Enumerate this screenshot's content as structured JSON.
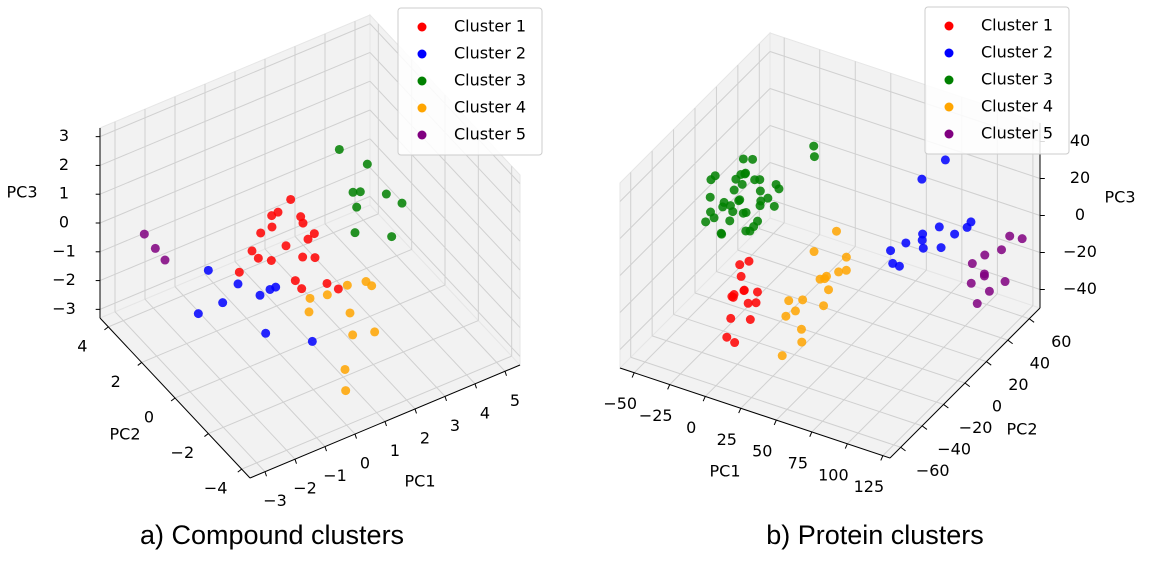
{
  "chart_data": [
    {
      "type": "scatter3d",
      "caption": "a) Compound clusters",
      "xlabel": "PC1",
      "ylabel": "PC2",
      "zlabel": "PC3",
      "xlim": [
        -3.5,
        5.5
      ],
      "ylim": [
        -4.5,
        4.5
      ],
      "zlim": [
        -3.3,
        3.3
      ],
      "xticks": [
        {
          "value": -3,
          "label": "−3"
        },
        {
          "value": -2,
          "label": "−2"
        },
        {
          "value": -1,
          "label": "−1"
        },
        0,
        1,
        2,
        3,
        4,
        5
      ],
      "yticks": [
        {
          "value": -4,
          "label": "−4"
        },
        {
          "value": -2,
          "label": "−2"
        },
        0,
        2,
        4
      ],
      "zticks": [
        {
          "value": -3,
          "label": "−3"
        },
        {
          "value": -2,
          "label": "−2"
        },
        {
          "value": -1,
          "label": "−1"
        },
        0,
        1,
        2,
        3
      ],
      "grid": true,
      "legend": "upper right",
      "series": [
        {
          "name": "Cluster 1",
          "color": "red",
          "x": [
            0.3,
            0.0,
            0.6,
            -0.2,
            0.8,
            0.4,
            1.0,
            -0.5,
            0.2,
            0.7,
            1.2,
            -0.1,
            0.5,
            0.9,
            1.5,
            0.1,
            0.6,
            1.1,
            -0.3,
            0.4
          ],
          "y": [
            -0.1,
            0.5,
            -0.6,
            0.8,
            0.2,
            1.2,
            -0.3,
            0.4,
            -1.0,
            0.9,
            0.1,
            1.5,
            -0.4,
            -1.2,
            -0.8,
            0.3,
            1.6,
            0.6,
            1.9,
            -0.2
          ],
          "z": [
            2.0,
            1.2,
            0.8,
            0.5,
            1.0,
            0.2,
            -0.2,
            0.0,
            0.6,
            -0.4,
            0.3,
            -0.6,
            -1.0,
            -0.5,
            -1.2,
            1.4,
            -1.3,
            0.4,
            -1.5,
            -0.8
          ]
        },
        {
          "name": "Cluster 2",
          "color": "blue",
          "x": [
            -1.0,
            -0.4,
            0.0,
            -0.8,
            0.3,
            -1.5,
            0.5,
            -0.2,
            0.8
          ],
          "y": [
            2.5,
            1.8,
            1.2,
            2.0,
            0.8,
            2.2,
            1.5,
            0.5,
            -0.5
          ],
          "z": [
            -1.5,
            -1.8,
            -2.0,
            -2.4,
            -1.6,
            -2.6,
            -2.2,
            -2.8,
            -2.9
          ]
        },
        {
          "name": "Cluster 3",
          "color": "green",
          "x": [
            2.2,
            2.8,
            3.1,
            2.4,
            2.6,
            3.4,
            2.0,
            3.0,
            3.5
          ],
          "y": [
            0.4,
            -0.2,
            -0.8,
            -0.5,
            0.3,
            -1.2,
            -0.9,
            0.8,
            -0.4
          ],
          "z": [
            2.6,
            2.2,
            1.4,
            1.6,
            1.0,
            1.2,
            0.6,
            0.0,
            -0.5
          ]
        },
        {
          "name": "Cluster 4",
          "color": "orange",
          "x": [
            1.3,
            1.8,
            1.0,
            2.2,
            1.5,
            0.8,
            2.5,
            1.2,
            0.5,
            0.3,
            1.6
          ],
          "y": [
            -0.5,
            -0.8,
            0.0,
            -1.2,
            -1.5,
            -0.3,
            -1.0,
            -2.2,
            -3.0,
            -3.4,
            -2.8
          ],
          "z": [
            -1.5,
            -1.2,
            -1.8,
            -1.0,
            -1.6,
            -2.0,
            -1.4,
            -1.8,
            -2.2,
            -2.6,
            -1.5
          ]
        },
        {
          "name": "Cluster 5",
          "color": "purple",
          "x": [
            -2.1,
            -2.3,
            -2.0
          ],
          "y": [
            3.7,
            4.0,
            3.3
          ],
          "z": [
            -1.0,
            -0.6,
            -1.2
          ]
        }
      ]
    },
    {
      "type": "scatter3d",
      "caption": "b) Protein clusters",
      "xlabel": "PC1",
      "ylabel": "PC2",
      "zlabel": "PC3",
      "xlim": [
        -60,
        130
      ],
      "ylim": [
        -70,
        70
      ],
      "zlim": [
        -50,
        50
      ],
      "xticks": [
        {
          "value": -50,
          "label": "−50"
        },
        {
          "value": -25,
          "label": "−25"
        },
        0,
        25,
        50,
        75,
        100,
        125
      ],
      "yticks": [
        {
          "value": -60,
          "label": "−60"
        },
        {
          "value": -40,
          "label": "−40"
        },
        {
          "value": -20,
          "label": "−20"
        },
        0,
        20,
        40,
        60
      ],
      "zticks": [
        {
          "value": -40,
          "label": "−40"
        },
        {
          "value": -20,
          "label": "−20"
        },
        0,
        20,
        40
      ],
      "grid": true,
      "legend": "upper right",
      "series": [
        {
          "name": "Cluster 1",
          "color": "red",
          "x": [
            -20,
            -14,
            -10,
            -18,
            -24,
            -8,
            -16,
            -12,
            -22,
            -6,
            -15,
            -19,
            -11,
            -25,
            -9
          ],
          "y": [
            -10,
            -15,
            -8,
            -20,
            -6,
            -12,
            -25,
            -18,
            -14,
            -22,
            -30,
            -4,
            -28,
            -12,
            -16
          ],
          "z": [
            -25,
            -28,
            -32,
            -30,
            -22,
            -35,
            -38,
            -26,
            -33,
            -29,
            -45,
            -20,
            -48,
            -36,
            -42
          ]
        },
        {
          "name": "Cluster 2",
          "color": "blue",
          "x": [
            55,
            62,
            70,
            78,
            85,
            65,
            72,
            90,
            68,
            80,
            58,
            75,
            95,
            83
          ],
          "y": [
            30,
            35,
            40,
            45,
            50,
            25,
            38,
            55,
            42,
            48,
            28,
            33,
            52,
            40
          ],
          "z": [
            -15,
            -12,
            -8,
            -5,
            -10,
            -18,
            -14,
            -8,
            20,
            30,
            -20,
            -6,
            -2,
            -12
          ]
        },
        {
          "name": "Cluster 3",
          "color": "green",
          "x": [
            -27,
            -35,
            -20,
            -40,
            -15,
            -30,
            -25,
            -45,
            -10,
            -32,
            -22,
            -38,
            -18,
            -28,
            -42,
            -12,
            -33,
            -24,
            -36,
            -16,
            -29,
            -21,
            -44,
            -26,
            -34,
            -19,
            -39,
            -31,
            -23,
            -14,
            -48,
            -27,
            -37,
            -11,
            -25,
            -30,
            -17,
            -41,
            13,
            15
          ],
          "y": [
            -2,
            5,
            -8,
            10,
            -12,
            3,
            15,
            -5,
            -15,
            8,
            -3,
            18,
            0,
            -10,
            2,
            12,
            -18,
            6,
            -7,
            20,
            -14,
            9,
            14,
            -1,
            -20,
            4,
            -9,
            22,
            -16,
            7,
            -6,
            11,
            16,
            -4,
            -22,
            1,
            17,
            -11,
            14,
            12
          ],
          "z": [
            10,
            15,
            8,
            5,
            12,
            20,
            0,
            18,
            5,
            25,
            -5,
            10,
            22,
            3,
            0,
            14,
            8,
            28,
            -8,
            6,
            15,
            2,
            -10,
            18,
            12,
            -3,
            24,
            6,
            16,
            9,
            -5,
            -12,
            11,
            20,
            4,
            7,
            -2,
            13,
            40,
            36
          ]
        },
        {
          "name": "Cluster 4",
          "color": "orange",
          "x": [
            20,
            28,
            35,
            25,
            40,
            15,
            32,
            22,
            45,
            30,
            18,
            38,
            26,
            34,
            10,
            42,
            24
          ],
          "y": [
            5,
            0,
            -5,
            10,
            -8,
            -12,
            12,
            -15,
            2,
            -20,
            -3,
            -10,
            18,
            -25,
            -8,
            6,
            -30
          ],
          "z": [
            -10,
            -20,
            -15,
            -25,
            -18,
            -28,
            -22,
            -30,
            -12,
            -35,
            -32,
            -26,
            -5,
            -38,
            -40,
            -8,
            -45
          ]
        },
        {
          "name": "Cluster 5",
          "color": "purple",
          "x": [
            105,
            110,
            115,
            118,
            112,
            120,
            108,
            122,
            116,
            125,
            114
          ],
          "y": [
            40,
            45,
            38,
            50,
            42,
            55,
            35,
            48,
            30,
            60,
            44
          ],
          "z": [
            -15,
            -12,
            -18,
            -10,
            -20,
            -5,
            -22,
            -25,
            -28,
            -8,
            -30
          ]
        }
      ]
    }
  ]
}
